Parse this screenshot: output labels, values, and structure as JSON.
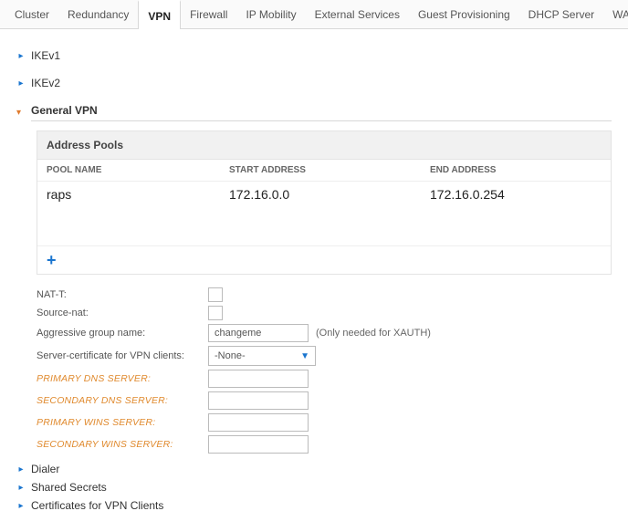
{
  "tabs": {
    "items": [
      "Cluster",
      "Redundancy",
      "VPN",
      "Firewall",
      "IP Mobility",
      "External Services",
      "Guest Provisioning",
      "DHCP Server",
      "WAN"
    ],
    "active_index": 2
  },
  "accordion": {
    "ikev1": "IKEv1",
    "ikev2": "IKEv2",
    "general_vpn": "General VPN",
    "dialer": "Dialer",
    "shared_secrets": "Shared Secrets",
    "certs": "Certificates for VPN Clients"
  },
  "pools": {
    "title": "Address Pools",
    "headers": {
      "name": "POOL NAME",
      "start": "START ADDRESS",
      "end": "END ADDRESS"
    },
    "row": {
      "name": "raps",
      "start": "172.16.0.0",
      "end": "172.16.0.254"
    }
  },
  "form": {
    "nat_t_label": "NAT-T:",
    "source_nat_label": "Source-nat:",
    "agg_group_label": "Aggressive group name:",
    "agg_group_value": "changeme",
    "agg_group_hint": "(Only needed for XAUTH)",
    "server_cert_label": "Server-certificate for VPN clients:",
    "server_cert_value": "-None-",
    "primary_dns": "PRIMARY DNS SERVER:",
    "secondary_dns": "SECONDARY DNS SERVER:",
    "primary_wins": "PRIMARY WINS SERVER:",
    "secondary_wins": "SECONDARY WINS SERVER:"
  },
  "style": {
    "accent_blue": "#1a75cf",
    "accent_orange": "#e08a2e",
    "border": "#d8d8d8"
  }
}
